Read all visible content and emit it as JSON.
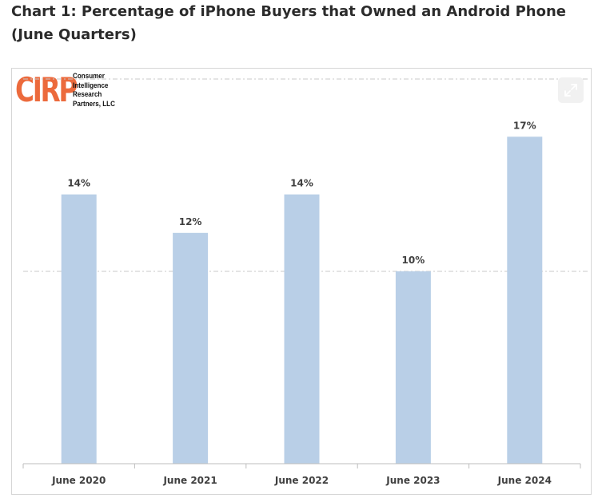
{
  "heading": "Chart 1: Percentage of iPhone Buyers that Owned an Android Phone (June Quarters)",
  "logo": {
    "mark": "CIRP",
    "lines": [
      "Consumer",
      "Intelligence",
      "Research",
      "Partners, LLC"
    ]
  },
  "toolbar": {
    "expand_icon": "expand-icon"
  },
  "colors": {
    "bar": "#b9cfe7",
    "label": "#404040",
    "grid": "#c8c8c8",
    "logo": "#ec6a3c"
  },
  "chart_data": {
    "type": "bar",
    "categories": [
      "June 2020",
      "June 2021",
      "June 2022",
      "June 2023",
      "June 2024"
    ],
    "values": [
      14,
      12,
      14,
      10,
      17
    ],
    "data_labels": [
      "14%",
      "12%",
      "14%",
      "10%",
      "17%"
    ],
    "title": "",
    "xlabel": "",
    "ylabel": "",
    "ylim": [
      0,
      20
    ],
    "grid": true,
    "gridlines": [
      10,
      20
    ],
    "legend": "none"
  }
}
